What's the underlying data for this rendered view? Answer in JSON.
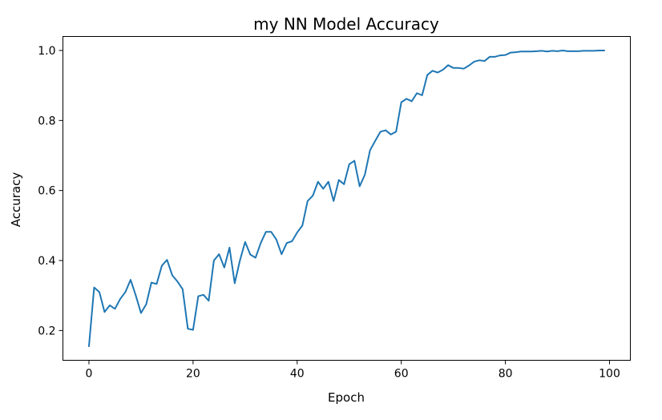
{
  "chart_data": {
    "type": "line",
    "title": "my NN Model Accuracy",
    "xlabel": "Epoch",
    "ylabel": "Accuracy",
    "xlim": [
      -5,
      104
    ],
    "ylim": [
      0.115,
      1.04
    ],
    "x_ticks": [
      0,
      20,
      40,
      60,
      80,
      100
    ],
    "y_ticks": [
      0.2,
      0.4,
      0.6,
      0.8,
      1.0
    ],
    "x_tick_labels": [
      "0",
      "20",
      "40",
      "60",
      "80",
      "100"
    ],
    "y_tick_labels": [
      "0.2",
      "0.4",
      "0.6",
      "0.8",
      "1.0"
    ],
    "grid": false,
    "series": [
      {
        "color": "#1f77b4",
        "x": [
          0,
          1,
          2,
          3,
          4,
          5,
          6,
          7,
          8,
          9,
          10,
          11,
          12,
          13,
          14,
          15,
          16,
          17,
          18,
          19,
          20,
          21,
          22,
          23,
          24,
          25,
          26,
          27,
          28,
          29,
          30,
          31,
          32,
          33,
          34,
          35,
          36,
          37,
          38,
          39,
          40,
          41,
          42,
          43,
          44,
          45,
          46,
          47,
          48,
          49,
          50,
          51,
          52,
          53,
          54,
          55,
          56,
          57,
          58,
          59,
          60,
          61,
          62,
          63,
          64,
          65,
          66,
          67,
          68,
          69,
          70,
          71,
          72,
          73,
          74,
          75,
          76,
          77,
          78,
          79,
          80,
          81,
          82,
          83,
          84,
          85,
          86,
          87,
          88,
          89,
          90,
          91,
          92,
          93,
          94,
          95,
          96,
          97,
          98,
          99
        ],
        "values": [
          0.155,
          0.323,
          0.31,
          0.253,
          0.272,
          0.262,
          0.29,
          0.31,
          0.345,
          0.3,
          0.25,
          0.275,
          0.337,
          0.333,
          0.385,
          0.402,
          0.358,
          0.34,
          0.318,
          0.205,
          0.202,
          0.298,
          0.302,
          0.285,
          0.4,
          0.418,
          0.38,
          0.437,
          0.335,
          0.4,
          0.453,
          0.417,
          0.408,
          0.45,
          0.482,
          0.482,
          0.46,
          0.418,
          0.45,
          0.455,
          0.48,
          0.5,
          0.57,
          0.585,
          0.625,
          0.605,
          0.625,
          0.57,
          0.63,
          0.618,
          0.675,
          0.685,
          0.612,
          0.645,
          0.715,
          0.742,
          0.768,
          0.772,
          0.76,
          0.768,
          0.852,
          0.862,
          0.855,
          0.878,
          0.872,
          0.93,
          0.942,
          0.937,
          0.945,
          0.958,
          0.95,
          0.95,
          0.948,
          0.957,
          0.968,
          0.972,
          0.97,
          0.982,
          0.982,
          0.986,
          0.987,
          0.994,
          0.995,
          0.997,
          0.997,
          0.997,
          0.998,
          0.999,
          0.997,
          0.999,
          0.998,
          1.0,
          0.998,
          0.998,
          0.998,
          0.999,
          0.999,
          0.999,
          1.0,
          1.0
        ]
      }
    ]
  }
}
